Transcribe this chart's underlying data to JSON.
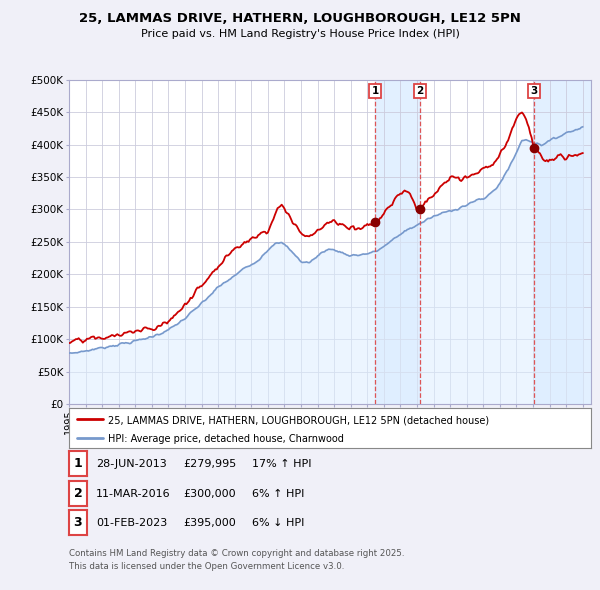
{
  "title_line1": "25, LAMMAS DRIVE, HATHERN, LOUGHBOROUGH, LE12 5PN",
  "title_line2": "Price paid vs. HM Land Registry's House Price Index (HPI)",
  "bg_color": "#f0f0f8",
  "plot_bg_color": "#ffffff",
  "grid_color": "#ccccdd",
  "red_line_color": "#cc0000",
  "blue_line_color": "#7799cc",
  "blue_fill_color": "#ddeeff",
  "sale_marker_color": "#880000",
  "vline_color": "#dd4444",
  "highlight_bg": "#ddeeff",
  "sale1_x": 2013.49,
  "sale1_y": 279995,
  "sale2_x": 2016.19,
  "sale2_y": 300000,
  "sale3_x": 2023.08,
  "sale3_y": 395000,
  "ylim": [
    0,
    500000
  ],
  "xlim": [
    1995.0,
    2026.5
  ],
  "yticks": [
    0,
    50000,
    100000,
    150000,
    200000,
    250000,
    300000,
    350000,
    400000,
    450000,
    500000
  ],
  "ytick_labels": [
    "£0",
    "£50K",
    "£100K",
    "£150K",
    "£200K",
    "£250K",
    "£300K",
    "£350K",
    "£400K",
    "£450K",
    "£500K"
  ],
  "xticks": [
    1995,
    1996,
    1997,
    1998,
    1999,
    2000,
    2001,
    2002,
    2003,
    2004,
    2005,
    2006,
    2007,
    2008,
    2009,
    2010,
    2011,
    2012,
    2013,
    2014,
    2015,
    2016,
    2017,
    2018,
    2019,
    2020,
    2021,
    2022,
    2023,
    2024,
    2025,
    2026
  ],
  "legend_label_red": "25, LAMMAS DRIVE, HATHERN, LOUGHBOROUGH, LE12 5PN (detached house)",
  "legend_label_blue": "HPI: Average price, detached house, Charnwood",
  "table_rows": [
    [
      "1",
      "28-JUN-2013",
      "£279,995",
      "17% ↑ HPI"
    ],
    [
      "2",
      "11-MAR-2016",
      "£300,000",
      "6% ↑ HPI"
    ],
    [
      "3",
      "01-FEB-2023",
      "£395,000",
      "6% ↓ HPI"
    ]
  ],
  "footnote_line1": "Contains HM Land Registry data © Crown copyright and database right 2025.",
  "footnote_line2": "This data is licensed under the Open Government Licence v3.0."
}
